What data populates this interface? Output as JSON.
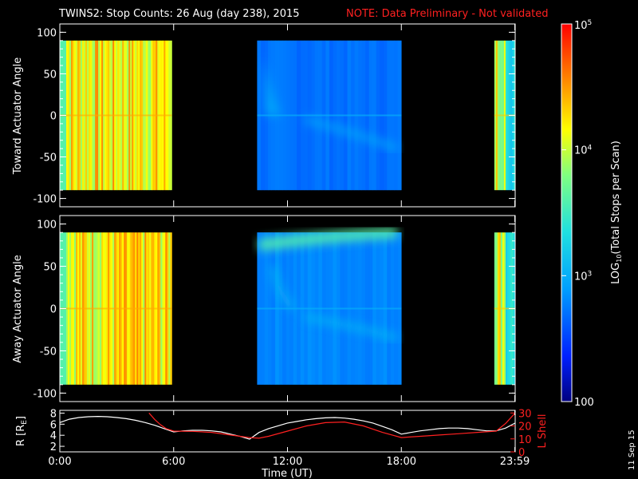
{
  "title": {
    "main": "TWINS2: Stop Counts: 26 Aug (day 238), 2015",
    "note": "NOTE: Data Preliminary - Not validated"
  },
  "chart_data": [
    {
      "type": "heatmap",
      "ylabel": "Toward Actuator Angle",
      "ylim": [
        -110,
        110
      ],
      "yticks": [
        "100",
        "50",
        "0",
        "-50",
        "-100"
      ],
      "ytick_values": [
        100,
        50,
        0,
        -50,
        -100
      ],
      "data_angle_range": [
        -90,
        90
      ],
      "xlim": [
        0,
        24
      ],
      "data_blocks_hours": [
        [
          0,
          5.9
        ],
        [
          10.4,
          18.0
        ],
        [
          22.9,
          24
        ]
      ],
      "colormap_levels_log10": {
        "block1": 4.2,
        "block2": 2.7,
        "block3": 4.1
      }
    },
    {
      "type": "heatmap",
      "ylabel": "Away Actuator Angle",
      "ylim": [
        -110,
        110
      ],
      "yticks": [
        "100",
        "50",
        "0",
        "-50",
        "-100"
      ],
      "ytick_values": [
        100,
        50,
        0,
        -50,
        -100
      ],
      "data_angle_range": [
        -90,
        90
      ],
      "xlim": [
        0,
        24
      ],
      "data_blocks_hours": [
        [
          0,
          5.9
        ],
        [
          10.4,
          18.0
        ],
        [
          22.9,
          24
        ]
      ],
      "colormap_levels_log10": {
        "block1": 4.2,
        "block2": 2.8,
        "block3": 4.1
      }
    },
    {
      "type": "line",
      "xlabel": "Time (UT)",
      "xticks": [
        "0:00",
        "6:00",
        "12:00",
        "18:00",
        "23:59"
      ],
      "xtick_values": [
        0,
        6,
        12,
        18,
        23.98
      ],
      "xlim": [
        0,
        24
      ],
      "left_axis": {
        "label": "R [RE]",
        "label_base": "R [R",
        "label_sub": "E",
        "label_end": "]",
        "ticks": [
          "8",
          "6",
          "4",
          "2"
        ],
        "tick_values": [
          8,
          6,
          4,
          2
        ],
        "ylim": [
          1,
          8.5
        ]
      },
      "right_axis": {
        "label": "L Shell",
        "ticks": [
          "30",
          "20",
          "10"
        ],
        "tick_values": [
          30,
          20,
          10
        ],
        "extra_ticks": [
          "0"
        ],
        "extra_tick_values": [
          0
        ],
        "ylim": [
          0,
          32
        ]
      },
      "series": [
        {
          "name": "R [RE]",
          "color": "#ffffff",
          "x": [
            0,
            0.5,
            1,
            1.5,
            2,
            2.5,
            3,
            3.5,
            4,
            4.5,
            5,
            5.5,
            6,
            6.5,
            7,
            7.5,
            8,
            8.5,
            9,
            9.5,
            10,
            10.5,
            11,
            11.5,
            12,
            12.5,
            13,
            13.5,
            14,
            14.5,
            15,
            15.5,
            16,
            16.5,
            17,
            17.5,
            18,
            18.5,
            19,
            19.5,
            20,
            20.5,
            21,
            21.5,
            22,
            22.5,
            23,
            23.5,
            24
          ],
          "y": [
            6.3,
            6.9,
            7.2,
            7.35,
            7.4,
            7.35,
            7.2,
            7.0,
            6.7,
            6.3,
            5.8,
            5.2,
            4.6,
            4.8,
            4.9,
            4.9,
            4.8,
            4.6,
            4.2,
            3.8,
            3.3,
            4.5,
            5.2,
            5.7,
            6.2,
            6.5,
            6.8,
            7.0,
            7.15,
            7.2,
            7.1,
            6.9,
            6.6,
            6.2,
            5.6,
            5.0,
            4.2,
            4.5,
            4.8,
            5.0,
            5.2,
            5.3,
            5.3,
            5.2,
            5.0,
            4.8,
            4.8,
            5.3,
            6.2
          ]
        },
        {
          "name": "L Shell",
          "color": "#ff2020",
          "x": [
            4.7,
            5.0,
            5.3,
            5.6,
            6.0,
            7,
            8,
            9,
            10,
            10.5,
            11,
            12,
            13,
            14,
            15,
            16,
            17,
            18,
            19,
            20,
            21,
            22,
            23,
            23.5,
            24
          ],
          "y": [
            30,
            25,
            21,
            18,
            16,
            15.8,
            15,
            13,
            11,
            10.5,
            12,
            16,
            20,
            22.5,
            23,
            20,
            15,
            11,
            12,
            13,
            14,
            15,
            16,
            22,
            30
          ]
        }
      ]
    }
  ],
  "colorbar": {
    "label": "LOG10(Total Stops per Scan)",
    "label_pre": "LOG",
    "label_sub": "10",
    "label_post": "(Total Stops per Scan)",
    "ticks": [
      {
        "base": "10",
        "exp": "5",
        "value": 5
      },
      {
        "base": "10",
        "exp": "4",
        "value": 4
      },
      {
        "base": "10",
        "exp": "3",
        "value": 3
      },
      {
        "base": "100",
        "exp": "",
        "value": 2
      }
    ],
    "range_log10": [
      2,
      5
    ]
  },
  "footer": {
    "date_stamp": "11 Sep 15"
  },
  "colors": {
    "background": "#000000",
    "axes": "#ffffff",
    "note": "#ff2020",
    "l_shell": "#ff2020"
  }
}
